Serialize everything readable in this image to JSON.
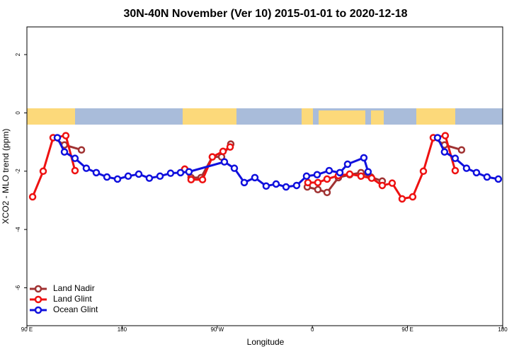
{
  "chart_data": {
    "type": "line",
    "title": "30N-40N November (Ver 10)   2015-01-01 to 2020-12-18",
    "x_label": "Longitude",
    "y_label": "XCO2 - MLO trend (ppm)",
    "xlim": [
      90,
      540
    ],
    "ylim": [
      -7.3,
      2.95
    ],
    "xticks": [
      {
        "value": 90,
        "label": "90 E"
      },
      {
        "value": 180,
        "label": "180"
      },
      {
        "value": 270,
        "label": "90 W"
      },
      {
        "value": 360,
        "label": "0"
      },
      {
        "value": 450,
        "label": "90 E"
      },
      {
        "value": 540,
        "label": "180"
      }
    ],
    "yticks": [
      -6,
      -4,
      -2,
      0,
      2
    ],
    "legend": "bottom-left",
    "series": [
      {
        "name": "Land Nadir",
        "color": "#a03232",
        "x": [
          114.8,
          125.5,
          141.6,
          null,
          239.3,
          245.3,
          254.7,
          265.4,
          274.1,
          282.8,
          null,
          355.2,
          365.2,
          373.9,
          384.6,
          395.3,
          406.0,
          415.4,
          426.1,
          null,
          474.4,
          485.0,
          501.1
        ],
        "values": [
          -0.85,
          -1.1,
          -1.27,
          null,
          -1.93,
          -2.22,
          -2.22,
          -1.51,
          -1.51,
          -1.07,
          null,
          -2.54,
          -2.63,
          -2.73,
          -2.22,
          -2.12,
          -2.05,
          -2.2,
          -2.34,
          null,
          -0.85,
          -1.1,
          -1.27
        ]
      },
      {
        "name": "Land Glint",
        "color": "#ee1111",
        "x": [
          95.4,
          105.4,
          114.8,
          126.8,
          135.5,
          null,
          239.3,
          245.3,
          256.1,
          265.4,
          275.5,
          282.2,
          null,
          355.8,
          365.2,
          373.9,
          384.6,
          395.3,
          406.0,
          416.1,
          426.1,
          435.5,
          444.9,
          454.9,
          465.0,
          474.4,
          485.7,
          495.1
        ],
        "values": [
          -2.88,
          -2.0,
          -0.85,
          -0.78,
          -1.98,
          null,
          -1.93,
          -2.29,
          -2.29,
          -1.51,
          -1.32,
          -1.17,
          null,
          -2.39,
          -2.39,
          -2.27,
          -2.15,
          -2.1,
          -2.17,
          -2.24,
          -2.49,
          -2.41,
          -2.95,
          -2.88,
          -2.0,
          -0.85,
          -0.78,
          -1.98
        ]
      },
      {
        "name": "Ocean Glint",
        "color": "#1010dd",
        "x": [
          118.8,
          125.5,
          135.5,
          146.2,
          155.6,
          165.7,
          175.7,
          185.8,
          195.8,
          205.8,
          215.9,
          225.9,
          235.3,
          243.3,
          276.8,
          286.2,
          295.6,
          305.6,
          316.3,
          325.7,
          335.1,
          345.1,
          354.5,
          364.5,
          375.9,
          386.0,
          393.3,
          408.7,
          412.7,
          null,
          478.4,
          485.0,
          495.1,
          505.8,
          515.2,
          525.2,
          535.9
        ],
        "values": [
          -0.85,
          -1.34,
          -1.56,
          -1.9,
          -2.05,
          -2.2,
          -2.27,
          -2.17,
          -2.1,
          -2.24,
          -2.17,
          -2.07,
          -2.05,
          -2.02,
          -1.68,
          -1.9,
          -2.39,
          -2.22,
          -2.51,
          -2.44,
          -2.54,
          -2.49,
          -2.17,
          -2.12,
          -1.98,
          -2.05,
          -1.76,
          -1.54,
          -2.02,
          null,
          -0.85,
          -1.34,
          -1.56,
          -1.9,
          -2.05,
          -2.2,
          -2.27
        ]
      }
    ]
  }
}
